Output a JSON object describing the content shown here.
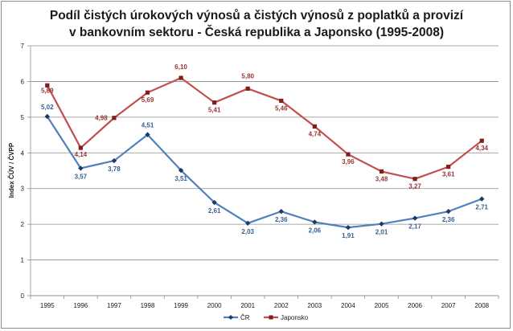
{
  "chart_data": {
    "type": "line",
    "title": "Podíl čistých úrokových výnosů a čistých výnosů z poplatků a provizí",
    "subtitle": "v bankovním sektoru - Česká republika a Japonsko (1995-2008)",
    "ylabel": "Index ČÚV / ČVPP",
    "xlabel": "",
    "ylim": [
      0,
      7
    ],
    "yticks": [
      0,
      1,
      2,
      3,
      4,
      5,
      6,
      7
    ],
    "grid": "horizontal",
    "legend_position": "bottom",
    "categories": [
      "1995",
      "1996",
      "1997",
      "1998",
      "1999",
      "2000",
      "2001",
      "2002",
      "2003",
      "2004",
      "2005",
      "2006",
      "2007",
      "2008"
    ],
    "series": [
      {
        "name": "ČR",
        "color": "#4f81bd",
        "label_color": "#376092",
        "marker": "diamond",
        "values": [
          5.02,
          3.57,
          3.78,
          4.51,
          3.51,
          2.61,
          2.03,
          2.36,
          2.06,
          1.91,
          2.01,
          2.17,
          2.36,
          2.71
        ],
        "labels": [
          "5,02",
          "3,57",
          "3,78",
          "4,51",
          "3,51",
          "2,61",
          "2,03",
          "2,36",
          "2,06",
          "1,91",
          "2,01",
          "2,17",
          "2,36",
          "2,71"
        ]
      },
      {
        "name": "Japonsko",
        "color": "#c0504d",
        "label_color": "#953735",
        "marker": "square",
        "marker_color": "#7f1f1c",
        "values": [
          5.89,
          4.14,
          4.98,
          5.69,
          6.1,
          5.41,
          5.8,
          5.46,
          4.74,
          3.96,
          3.48,
          3.27,
          3.61,
          4.34
        ],
        "labels": [
          "5,89",
          "4,14",
          "4,98",
          "5,69",
          "6,10",
          "5,41",
          "5,80",
          "5,46",
          "4,74",
          "3,96",
          "3,48",
          "3,27",
          "3,61",
          "4,34"
        ]
      }
    ]
  }
}
